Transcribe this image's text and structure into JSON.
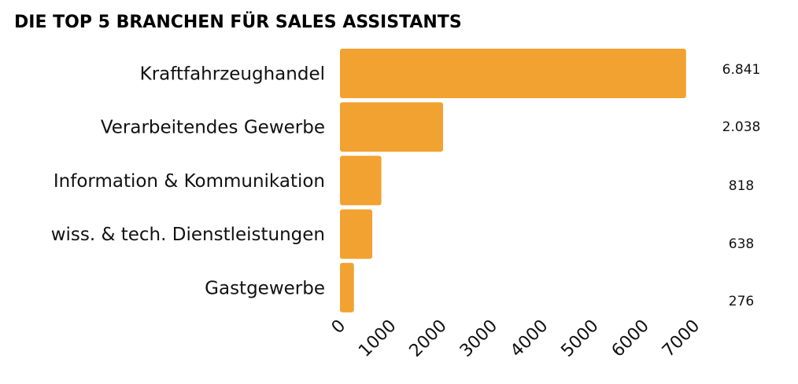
{
  "chart_data": {
    "type": "bar",
    "orientation": "horizontal",
    "title": "DIE TOP 5 BRANCHEN FÜR SALES ASSISTANTS",
    "categories": [
      "Kraftfahrzeughandel",
      "Verarbeitendes Gewerbe",
      "Information & Kommunikation",
      "wiss. & tech. Dienstleistungen",
      "Gastgewerbe"
    ],
    "values": [
      6841,
      2038,
      818,
      638,
      276
    ],
    "value_labels": [
      "6.841",
      "2.038",
      "818",
      "638",
      "276"
    ],
    "xlim": [
      0,
      7000
    ],
    "xticks": [
      "0",
      "1000",
      "2000",
      "3000",
      "4000",
      "5000",
      "6000",
      "7000"
    ],
    "bar_color": "#F2A230",
    "grid": false
  }
}
